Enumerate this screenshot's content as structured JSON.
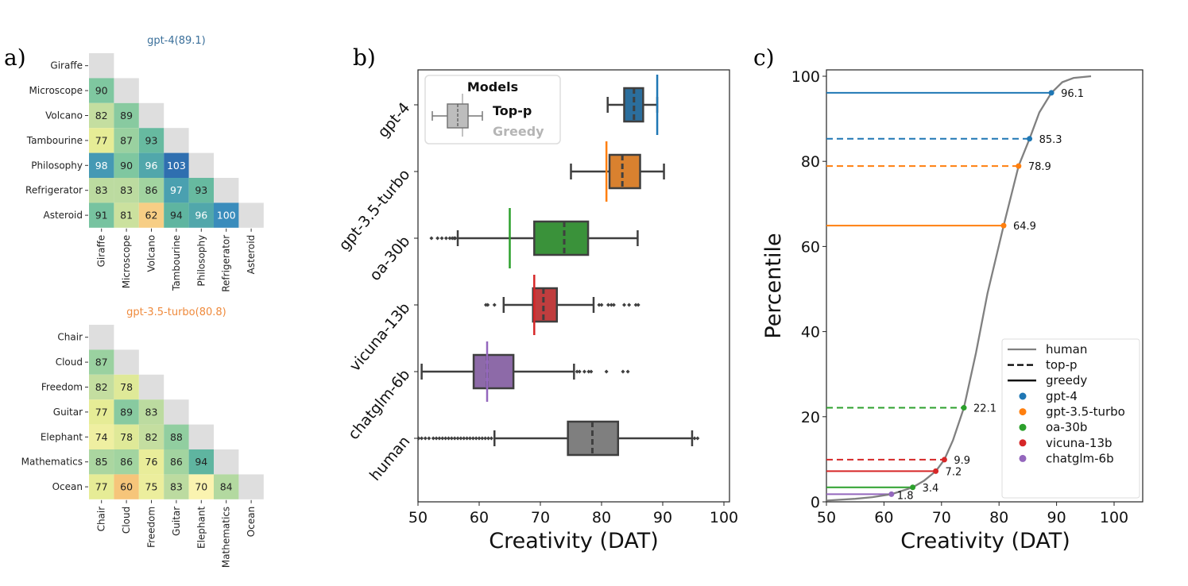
{
  "panel_labels": [
    "a)",
    "b)",
    "c)"
  ],
  "chart_data": [
    {
      "type": "heatmap",
      "title": "gpt-4(89.1)",
      "title_color": "#3a6f9a",
      "labels": [
        "Giraffe",
        "Microscope",
        "Volcano",
        "Tambourine",
        "Philosophy",
        "Refrigerator",
        "Asteroid"
      ],
      "lower_triangle": [
        [],
        [
          90
        ],
        [
          82,
          89
        ],
        [
          77,
          87,
          93
        ],
        [
          98,
          90,
          96,
          103
        ],
        [
          83,
          83,
          86,
          97,
          93
        ],
        [
          91,
          81,
          62,
          94,
          96,
          100
        ]
      ],
      "colormap": "orange (low) - yellow - green - blue (high)"
    },
    {
      "type": "heatmap",
      "title": "gpt-3.5-turbo(80.8)",
      "title_color": "#ef8a3c",
      "labels": [
        "Chair",
        "Cloud",
        "Freedom",
        "Guitar",
        "Elephant",
        "Mathematics",
        "Ocean"
      ],
      "lower_triangle": [
        [],
        [
          87
        ],
        [
          82,
          78
        ],
        [
          77,
          89,
          83
        ],
        [
          74,
          78,
          82,
          88
        ],
        [
          85,
          86,
          76,
          86,
          94
        ],
        [
          77,
          60,
          75,
          83,
          70,
          84
        ]
      ],
      "colormap": "orange (low) - yellow - green - blue (high)"
    },
    {
      "type": "box",
      "orientation": "horizontal",
      "xlabel": "Creativity (DAT)",
      "xlim": [
        50,
        101
      ],
      "xticks": [
        50,
        60,
        70,
        80,
        90,
        100
      ],
      "legend": {
        "title": "Models",
        "entries": [
          "Top-p",
          "Greedy"
        ],
        "placement": "top-left"
      },
      "series": [
        {
          "name": "gpt-4",
          "color": "#2b6e9d",
          "greedy_color": "#1f77b4",
          "min": 81,
          "q1": 83.7,
          "median": 85.3,
          "q3": 86.8,
          "max": 89.1,
          "greedy": 89.1,
          "outliers": []
        },
        {
          "name": "gpt-3.5-turbo",
          "color": "#d9812f",
          "greedy_color": "#ff7f0e",
          "min": 75,
          "q1": 81.3,
          "median": 83.4,
          "q3": 86.3,
          "max": 90.2,
          "greedy": 80.8,
          "outliers": []
        },
        {
          "name": "oa-30b",
          "color": "#3a923a",
          "greedy_color": "#2ca02c",
          "min": 56.5,
          "q1": 69,
          "median": 73.9,
          "q3": 77.8,
          "max": 85.9,
          "greedy": 65,
          "outliers": [
            52.2,
            53.2,
            53.9,
            54.6,
            55.2,
            55.6,
            55.9,
            56.1
          ]
        },
        {
          "name": "vicuna-13b",
          "color": "#c03d3e",
          "greedy_color": "#d62728",
          "min": 64,
          "q1": 68.8,
          "median": 70.5,
          "q3": 72.7,
          "max": 78.7,
          "greedy": 69,
          "outliers": [
            61.1,
            61.4,
            62.5,
            79.6,
            80,
            81.1,
            81.6,
            82,
            83.7,
            84.5,
            85.6,
            86
          ]
        },
        {
          "name": "chatglm-6b",
          "color": "#8d6aa8",
          "greedy_color": "#9467bd",
          "min": 50.6,
          "q1": 59.1,
          "median": 61.3,
          "q3": 65.6,
          "max": 75.5,
          "greedy": 61.3,
          "outliers": [
            76,
            76.4,
            77.2,
            77.9,
            78.3,
            80.8,
            83.5,
            84.3
          ]
        },
        {
          "name": "human",
          "color": "#7f7f7f",
          "greedy_color": "#7f7f7f",
          "min": 62.5,
          "q1": 74.5,
          "median": 78.5,
          "q3": 82.7,
          "max": 94.8,
          "greedy": null,
          "outliers": [
            50.1,
            50.6,
            51.2,
            51.8,
            52.5,
            53,
            53.5,
            54,
            54.5,
            55,
            55.5,
            56,
            56.5,
            57,
            57.5,
            58,
            58.5,
            59,
            59.5,
            60,
            60.5,
            61,
            61.5,
            62,
            95.2,
            95.7
          ]
        }
      ]
    },
    {
      "type": "line",
      "xlabel": "Creativity (DAT)",
      "ylabel": "Percentile",
      "xlim": [
        50,
        105
      ],
      "ylim": [
        0,
        101.5
      ],
      "xticks": [
        50,
        60,
        70,
        80,
        90,
        100
      ],
      "yticks": [
        0,
        20,
        40,
        60,
        80,
        100
      ],
      "human_curve": {
        "name": "human",
        "color": "#808080",
        "x": [
          50,
          55,
          58,
          61.3,
          65,
          67,
          69,
          70.5,
          72,
          73.9,
          76,
          78,
          80.8,
          83.4,
          85.3,
          87,
          89.1,
          91,
          93,
          96
        ],
        "y": [
          0.3,
          0.7,
          1.1,
          1.8,
          3.4,
          5,
          7.2,
          9.9,
          14.5,
          22.1,
          35,
          49,
          64.9,
          78.9,
          85.3,
          91.5,
          96.1,
          98.6,
          99.6,
          100
        ]
      },
      "markers": [
        {
          "model": "gpt-4",
          "style": "greedy",
          "x": 89.1,
          "percentile": 96.1,
          "label": "96.1",
          "color": "#1f77b4"
        },
        {
          "model": "gpt-4",
          "style": "top-p",
          "x": 85.3,
          "percentile": 85.3,
          "label": "85.3",
          "color": "#1f77b4"
        },
        {
          "model": "gpt-3.5-turbo",
          "style": "top-p",
          "x": 83.4,
          "percentile": 78.9,
          "label": "78.9",
          "color": "#ff7f0e"
        },
        {
          "model": "gpt-3.5-turbo",
          "style": "greedy",
          "x": 80.8,
          "percentile": 64.9,
          "label": "64.9",
          "color": "#ff7f0e"
        },
        {
          "model": "oa-30b",
          "style": "top-p",
          "x": 73.9,
          "percentile": 22.1,
          "label": "22.1",
          "color": "#2ca02c"
        },
        {
          "model": "vicuna-13b",
          "style": "top-p",
          "x": 70.5,
          "percentile": 9.9,
          "label": "9.9",
          "color": "#d62728"
        },
        {
          "model": "vicuna-13b",
          "style": "greedy",
          "x": 69,
          "percentile": 7.2,
          "label": "7.2",
          "color": "#d62728"
        },
        {
          "model": "oa-30b",
          "style": "greedy",
          "x": 65,
          "percentile": 3.4,
          "label": "3.4",
          "color": "#2ca02c"
        },
        {
          "model": "chatglm-6b",
          "style": "greedy",
          "x": 61.3,
          "percentile": 1.8,
          "label": "1.8",
          "color": "#9467bd"
        }
      ],
      "legend": {
        "placement": "lower-right",
        "lines": [
          {
            "label": "human",
            "dash": false,
            "color": "#808080"
          },
          {
            "label": "top-p",
            "dash": true,
            "color": "#000000"
          },
          {
            "label": "greedy",
            "dash": false,
            "color": "#000000"
          }
        ],
        "models": [
          {
            "label": "gpt-4",
            "color": "#1f77b4"
          },
          {
            "label": "gpt-3.5-turbo",
            "color": "#ff7f0e"
          },
          {
            "label": "oa-30b",
            "color": "#2ca02c"
          },
          {
            "label": "vicuna-13b",
            "color": "#d62728"
          },
          {
            "label": "chatglm-6b",
            "color": "#9467bd"
          }
        ]
      }
    }
  ]
}
